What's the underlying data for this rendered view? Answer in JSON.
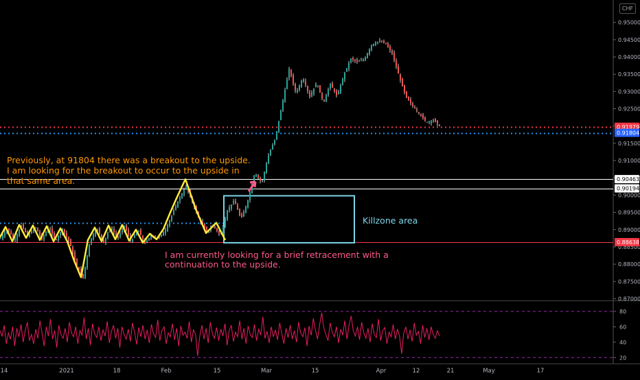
{
  "currency_button": "CHF",
  "annotations": {
    "breakout_text": "Previously, at 91804 there was a breakout to the upside. I am looking for the breakout to occur to the upside in that same area.",
    "retracement_text": "I am currently looking for a brief retracement with a continuation to the upside.",
    "zone_label": "Killzone area"
  },
  "colors": {
    "background": "#000000",
    "candle_up": "#26a69a",
    "candle_down": "#ef5350",
    "zigzag": "#ffeb3b",
    "dotted_breakout": "#2196f3",
    "support_line": "#f23645",
    "zone_box": "#7fd6e8",
    "rsi_line": "#e91e63",
    "rsi_band": "#9c27b0"
  },
  "chart_data": [
    {
      "type": "line",
      "title": "",
      "x_tick_labels": [
        "14",
        "2021",
        "18",
        "Feb",
        "15",
        "Mar",
        "15",
        "Apr",
        "12",
        "21",
        "May",
        "17"
      ],
      "y_tick_labels": [
        "0.95000",
        "0.94500",
        "0.94000",
        "0.93500",
        "0.93000",
        "0.92500",
        "0.92000",
        "0.91500",
        "0.91000",
        "0.90500",
        "0.90000",
        "0.89500",
        "0.89000",
        "0.88500",
        "0.88000",
        "0.87500",
        "0.87000"
      ],
      "ylim": [
        0.8695,
        0.9555
      ],
      "price_labels": [
        {
          "value": 0.91979,
          "text": "0.91979",
          "color": "#f23645"
        },
        {
          "value": 0.91804,
          "text": "0.91804",
          "color": "#2962ff"
        },
        {
          "value": 0.90463,
          "text": "0.90463",
          "color": "#ffffff"
        },
        {
          "value": 0.90194,
          "text": "0.90194",
          "color": "#ffffff"
        },
        {
          "value": 0.88638,
          "text": "0.88638",
          "color": "#f23645"
        }
      ],
      "horizontal_lines": [
        {
          "value": 0.91979,
          "style": "dotted",
          "color": "#f23645"
        },
        {
          "value": 0.91804,
          "style": "dotted",
          "color": "#2196f3"
        },
        {
          "value": 0.90463,
          "style": "solid",
          "color": "#ffffff"
        },
        {
          "value": 0.90194,
          "style": "solid",
          "color": "#ffffff"
        },
        {
          "value": 0.892,
          "style": "dotted",
          "color": "#2196f3"
        },
        {
          "value": 0.88638,
          "style": "solid",
          "color": "#f23645"
        }
      ],
      "price_path": {
        "x": [
          0,
          10,
          20,
          30,
          40,
          50,
          60,
          70,
          80,
          90,
          100,
          110,
          120,
          130,
          140,
          150,
          160,
          170,
          180,
          190,
          200,
          210,
          220,
          230,
          240,
          250,
          260,
          270,
          280,
          290,
          300,
          310,
          320,
          330,
          340,
          350,
          360,
          370,
          380,
          390,
          400,
          410,
          420,
          430,
          440,
          450,
          460,
          470,
          480,
          490,
          500,
          510,
          520,
          530,
          540,
          550,
          560,
          570,
          580,
          590,
          600,
          610,
          620,
          630,
          640
        ],
        "y": [
          0.8875,
          0.8905,
          0.8868,
          0.8912,
          0.888,
          0.891,
          0.8872,
          0.8908,
          0.8868,
          0.8902,
          0.8865,
          0.88,
          0.876,
          0.8868,
          0.8905,
          0.8862,
          0.891,
          0.8872,
          0.8912,
          0.8865,
          0.89,
          0.886,
          0.8885,
          0.8875,
          0.89,
          0.8945,
          0.899,
          0.9025,
          0.8975,
          0.8925,
          0.8895,
          0.8912,
          0.888,
          0.8955,
          0.8985,
          0.893,
          0.8985,
          0.9065,
          0.9035,
          0.9115,
          0.9165,
          0.9265,
          0.9365,
          0.9295,
          0.934,
          0.9285,
          0.9325,
          0.9268,
          0.9322,
          0.9285,
          0.935,
          0.9395,
          0.9385,
          0.9395,
          0.9435,
          0.9445,
          0.944,
          0.941,
          0.9345,
          0.9285,
          0.9258,
          0.9235,
          0.921,
          0.9218,
          0.9198
        ]
      },
      "zigzag": {
        "x": [
          0,
          8,
          18,
          28,
          38,
          48,
          58,
          68,
          78,
          88,
          98,
          108,
          118,
          128,
          138,
          148,
          158,
          168,
          178,
          188,
          198,
          208,
          218,
          228,
          238,
          248,
          258,
          270,
          285,
          300,
          315,
          328
        ],
        "y": [
          0.8878,
          0.8908,
          0.8866,
          0.8914,
          0.8876,
          0.8912,
          0.887,
          0.891,
          0.8866,
          0.8904,
          0.8866,
          0.881,
          0.8762,
          0.887,
          0.8906,
          0.8866,
          0.8912,
          0.8872,
          0.8914,
          0.8868,
          0.89,
          0.8862,
          0.8888,
          0.8872,
          0.8902,
          0.895,
          0.8995,
          0.9046,
          0.896,
          0.889,
          0.892,
          0.887
        ]
      },
      "zone": {
        "x_start": 326,
        "x_end": 516,
        "y_top": 0.8998,
        "y_bottom": 0.8862
      }
    },
    {
      "type": "line",
      "title": "",
      "y_tick_labels": [
        "80",
        "60",
        "40",
        "20"
      ],
      "ylim": [
        14,
        88
      ],
      "bands": [
        80,
        20
      ],
      "series": {
        "values": [
          55,
          48,
          62,
          38,
          52,
          44,
          60,
          35,
          58,
          47,
          63,
          40,
          55,
          66,
          42,
          50,
          38,
          57,
          45,
          68,
          52,
          35,
          60,
          48,
          70,
          44,
          55,
          33,
          62,
          50,
          45,
          58,
          40,
          66,
          52,
          47,
          60,
          38,
          55,
          49,
          72,
          44,
          58,
          36,
          64,
          51,
          46,
          60,
          42,
          56,
          48,
          67,
          39,
          54,
          62,
          45,
          58,
          33,
          60,
          50,
          44,
          57,
          41,
          65,
          53,
          37,
          59,
          47,
          62,
          44,
          56,
          39,
          63,
          51,
          46,
          69,
          42,
          55,
          60,
          38,
          52,
          47,
          64,
          43,
          58,
          35,
          61,
          49,
          53,
          45,
          67,
          40,
          56,
          50,
          22,
          48,
          62,
          44,
          58,
          39,
          66,
          51,
          45,
          59,
          42,
          57,
          48,
          64,
          36,
          55,
          62,
          41,
          53,
          47,
          68,
          44,
          58,
          38,
          61,
          50,
          46,
          63,
          42,
          57,
          49,
          73,
          45,
          54,
          39,
          60,
          47,
          56,
          43,
          65,
          51,
          38,
          58,
          46,
          62,
          44,
          55,
          40,
          66,
          52,
          47,
          59,
          35,
          61,
          49,
          71,
          56,
          44,
          63,
          78,
          58,
          50,
          42,
          65,
          53,
          47,
          60,
          39,
          57,
          49,
          68,
          44,
          62,
          74,
          55,
          48,
          60,
          43,
          66,
          52,
          45,
          58,
          40,
          64,
          50,
          46,
          70,
          42,
          55,
          59,
          38,
          53,
          47,
          63,
          44,
          57,
          48,
          25,
          52,
          60,
          44,
          56,
          41,
          65,
          49,
          54,
          38,
          62,
          46,
          58,
          43,
          60,
          50,
          45,
          55,
          48
        ]
      }
    }
  ]
}
